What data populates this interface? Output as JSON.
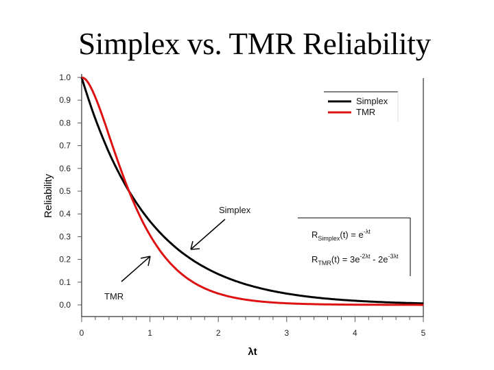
{
  "slide": {
    "title": "Simplex vs. TMR Reliability"
  },
  "chart_data": {
    "type": "line",
    "title": "Simplex vs. TMR Reliability",
    "xlabel": "λt",
    "ylabel": "Reliability",
    "xlim": [
      0,
      5
    ],
    "ylim": [
      0,
      1
    ],
    "x_ticks": [
      "0",
      "1",
      "2",
      "3",
      "4",
      "5"
    ],
    "y_ticks": [
      "0.0",
      "0.1",
      "0.2",
      "0.3",
      "0.4",
      "0.5",
      "0.6",
      "0.7",
      "0.8",
      "0.9",
      "1.0"
    ],
    "grid": false,
    "legend_position": "upper right",
    "x": [
      0,
      0.25,
      0.5,
      0.693,
      1,
      1.5,
      2,
      2.5,
      3,
      3.5,
      4,
      4.5,
      5
    ],
    "series": [
      {
        "name": "Simplex",
        "color": "#000000",
        "formula": "e^(-λt)",
        "values": [
          1.0,
          0.779,
          0.607,
          0.5,
          0.368,
          0.223,
          0.135,
          0.082,
          0.05,
          0.03,
          0.018,
          0.011,
          0.007
        ]
      },
      {
        "name": "TMR",
        "color": "#dd1111",
        "formula": "3e^(-2λt) - 2e^(-3λt)",
        "values": [
          1.0,
          0.873,
          0.657,
          0.5,
          0.306,
          0.127,
          0.051,
          0.02,
          0.007,
          0.003,
          0.001,
          0.0,
          0.0
        ]
      }
    ],
    "legend": [
      {
        "label": "Simplex",
        "color": "#000000"
      },
      {
        "label": "TMR",
        "color": "#dd1111"
      }
    ],
    "annotations": [
      {
        "text": "Simplex",
        "arrow_to": [
          1.6,
          0.24
        ]
      },
      {
        "text": "TMR",
        "arrow_to": [
          1.0,
          0.21
        ]
      }
    ],
    "equations": {
      "simplex": {
        "base": "R",
        "sub": "Simplex",
        "rhs": "(t) = e",
        "sup": "-λt"
      },
      "tmr": {
        "base": "R",
        "sub": "TMR",
        "rhs1": "(t) = 3e",
        "sup1": "-2λt",
        "rhs2": " - 2e",
        "sup2": "-3λt"
      }
    }
  }
}
